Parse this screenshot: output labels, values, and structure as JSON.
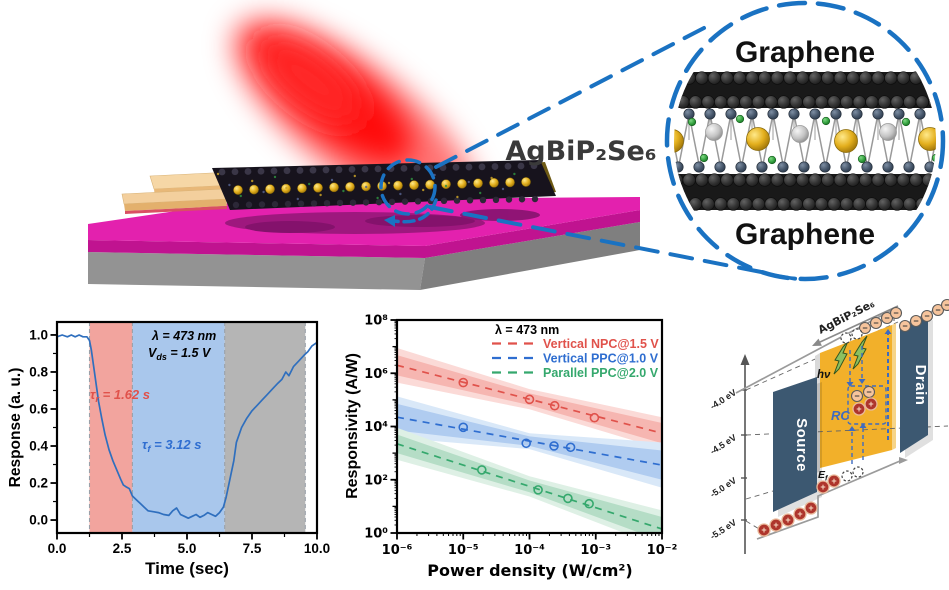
{
  "figure": {
    "inset": {
      "graphene_top": "Graphene",
      "graphene_bottom": "Graphene",
      "material": "AgBiP₂Se₆"
    },
    "response_chart": {
      "ylabel": "Response (a. u.)",
      "xlabel": "Time (sec)",
      "annotations": {
        "lambda": "λ = 473 nm",
        "vds_pre": "V",
        "vds_sub": "ds",
        "vds_post": " = 1.5 V",
        "tau_r_sym": "τ",
        "tau_r_sub": "r",
        "tau_r_rest": " = 1.62 s",
        "tau_f_sym": "τ",
        "tau_f_sub": "f",
        "tau_f_rest": " = 3.12 s"
      }
    },
    "responsivity_chart": {
      "ylabel": "Responsivity (A/W)",
      "xlabel": "Power density (W/cm²)",
      "legend_title": "λ = 473 nm"
    },
    "band_diagram": {
      "ticks": [
        "-4.0 eV",
        "-4.5 eV",
        "-5.0 eV",
        "-5.5 eV"
      ],
      "source": "Source",
      "drain": "Drain",
      "material": "AgBiP₂Se₆",
      "hv": "hν",
      "rc": "RC",
      "ef_main": "E",
      "ef_sub": "f"
    },
    "colors": {
      "callout_blue": "#1a72c2",
      "beam_red": "#ff0000",
      "substrate_magenta": "#e321ae",
      "slab_navy": "#3c5871",
      "channel_yellow": "#f2b02a"
    }
  },
  "chart_data": [
    {
      "type": "line",
      "title": "",
      "xlabel": "Time (sec)",
      "ylabel": "Response (a. u.)",
      "xlim": [
        0,
        10
      ],
      "ylim": [
        0,
        1.0
      ],
      "xticks": [
        0,
        2.5,
        5,
        7.5,
        10
      ],
      "xtick_labels": [
        "0.0",
        "2.5",
        "5.0",
        "7.5",
        "10.0"
      ],
      "yticks": [
        0,
        0.2,
        0.4,
        0.6,
        0.8,
        1.0
      ],
      "ytick_labels": [
        "0.0",
        "0.2",
        "0.4",
        "0.6",
        "0.8",
        "1.0"
      ],
      "annotations": [
        "λ = 473 nm",
        "Vds = 1.5 V",
        "τr = 1.62 s",
        "τf = 3.12 s"
      ],
      "regions": [
        {
          "x0": 1.25,
          "x1": 2.9,
          "color": "#f2a49e"
        },
        {
          "x0": 2.9,
          "x1": 6.45,
          "color": "#a9c7ec"
        },
        {
          "x0": 6.45,
          "x1": 9.55,
          "color": "#b5b5b5"
        }
      ],
      "boundaries": [
        1.25,
        2.9,
        6.45,
        9.55
      ],
      "series": [
        {
          "name": "response",
          "color": "#2f6fbe",
          "points": [
            [
              0,
              0.99
            ],
            [
              0.2,
              1.0
            ],
            [
              0.4,
              0.99
            ],
            [
              0.55,
              1.0
            ],
            [
              0.7,
              0.99
            ],
            [
              0.85,
              1.0
            ],
            [
              1.0,
              0.99
            ],
            [
              1.15,
              0.99
            ],
            [
              1.25,
              0.97
            ],
            [
              1.32,
              0.92
            ],
            [
              1.4,
              0.84
            ],
            [
              1.5,
              0.74
            ],
            [
              1.6,
              0.64
            ],
            [
              1.72,
              0.55
            ],
            [
              1.85,
              0.46
            ],
            [
              2.0,
              0.38
            ],
            [
              2.15,
              0.32
            ],
            [
              2.3,
              0.27
            ],
            [
              2.45,
              0.22
            ],
            [
              2.55,
              0.19
            ],
            [
              2.65,
              0.18
            ],
            [
              2.78,
              0.17
            ],
            [
              2.9,
              0.13
            ],
            [
              3.05,
              0.11
            ],
            [
              3.2,
              0.09
            ],
            [
              3.35,
              0.07
            ],
            [
              3.5,
              0.05
            ],
            [
              3.7,
              0.045
            ],
            [
              3.9,
              0.04
            ],
            [
              4.1,
              0.03
            ],
            [
              4.3,
              0.025
            ],
            [
              4.45,
              0.05
            ],
            [
              4.6,
              0.065
            ],
            [
              4.75,
              0.03
            ],
            [
              4.9,
              0.02
            ],
            [
              5.05,
              0.01
            ],
            [
              5.2,
              0.02
            ],
            [
              5.35,
              0.03
            ],
            [
              5.5,
              0.015
            ],
            [
              5.65,
              0.025
            ],
            [
              5.8,
              0.04
            ],
            [
              5.95,
              0.03
            ],
            [
              6.1,
              0.02
            ],
            [
              6.25,
              0.04
            ],
            [
              6.4,
              0.07
            ],
            [
              6.5,
              0.12
            ],
            [
              6.65,
              0.22
            ],
            [
              6.8,
              0.32
            ],
            [
              6.9,
              0.42
            ],
            [
              7.1,
              0.5
            ],
            [
              7.3,
              0.55
            ],
            [
              7.5,
              0.59
            ],
            [
              7.7,
              0.62
            ],
            [
              7.9,
              0.65
            ],
            [
              8.1,
              0.68
            ],
            [
              8.3,
              0.71
            ],
            [
              8.5,
              0.74
            ],
            [
              8.65,
              0.76
            ],
            [
              8.8,
              0.8
            ],
            [
              8.92,
              0.78
            ],
            [
              9.1,
              0.83
            ],
            [
              9.3,
              0.86
            ],
            [
              9.5,
              0.89
            ],
            [
              9.65,
              0.91
            ],
            [
              9.8,
              0.94
            ],
            [
              10,
              0.96
            ]
          ]
        }
      ]
    },
    {
      "type": "scatter",
      "log_x": true,
      "log_y": true,
      "xlabel": "Power density (W/cm²)",
      "ylabel": "Responsivity (A/W)",
      "xlim_log": [
        -6,
        -2
      ],
      "ylim_log": [
        0,
        8
      ],
      "xtick_powers": [
        -6,
        -5,
        -4,
        -3,
        -2
      ],
      "xtick_labels": [
        "10⁻⁶",
        "10⁻⁵",
        "10⁻⁴",
        "10⁻³",
        "10⁻²"
      ],
      "ytick_powers": [
        0,
        2,
        4,
        6,
        8
      ],
      "ytick_labels": [
        "10⁰",
        "10²",
        "10⁴",
        "10⁶",
        "10⁸"
      ],
      "legend_title": "λ = 473 nm",
      "series": [
        {
          "name": "Vertical NPC@1.5 V",
          "color": "#e0524b",
          "band_inner": "#f6b6b1",
          "band_outer": "#fbdad7",
          "line_log": [
            [
              -6,
              6.3
            ],
            [
              -2,
              3.75
            ]
          ],
          "anchors": [
            -6,
            -4,
            -2
          ],
          "hw_inner": [
            0.38,
            0.22,
            0.38
          ],
          "hw_outer": [
            0.65,
            0.38,
            0.6
          ],
          "points_log": [
            [
              -5,
              5.65
            ],
            [
              -4,
              5.02
            ],
            [
              -3.62,
              4.78
            ],
            [
              -3.02,
              4.33
            ]
          ]
        },
        {
          "name": "Vertical PPC@1.0 V",
          "color": "#2f6ed0",
          "band_inner": "#b0ccf0",
          "band_outer": "#d9e8f8",
          "line_log": [
            [
              -6,
              4.35
            ],
            [
              -2,
              2.55
            ]
          ],
          "anchors": [
            -6,
            -4,
            -2
          ],
          "hw_inner": [
            0.5,
            0.18,
            0.55
          ],
          "hw_outer": [
            0.78,
            0.3,
            0.85
          ],
          "points_log": [
            [
              -5,
              3.97
            ],
            [
              -4.05,
              3.37
            ],
            [
              -3.63,
              3.27
            ],
            [
              -3.38,
              3.22
            ]
          ]
        },
        {
          "name": "Parallel PPC@2.0 V",
          "color": "#35a86d",
          "band_inner": "#b5ddc6",
          "band_outer": "#def0e5",
          "line_log": [
            [
              -6,
              3.35
            ],
            [
              -2,
              0.15
            ]
          ],
          "anchors": [
            -6,
            -4,
            -2
          ],
          "hw_inner": [
            0.35,
            0.22,
            0.45
          ],
          "hw_outer": [
            0.6,
            0.38,
            0.7
          ],
          "points_log": [
            [
              -4.72,
              2.37
            ],
            [
              -3.87,
              1.62
            ],
            [
              -3.42,
              1.3
            ],
            [
              -3.1,
              1.1
            ]
          ]
        }
      ]
    }
  ]
}
